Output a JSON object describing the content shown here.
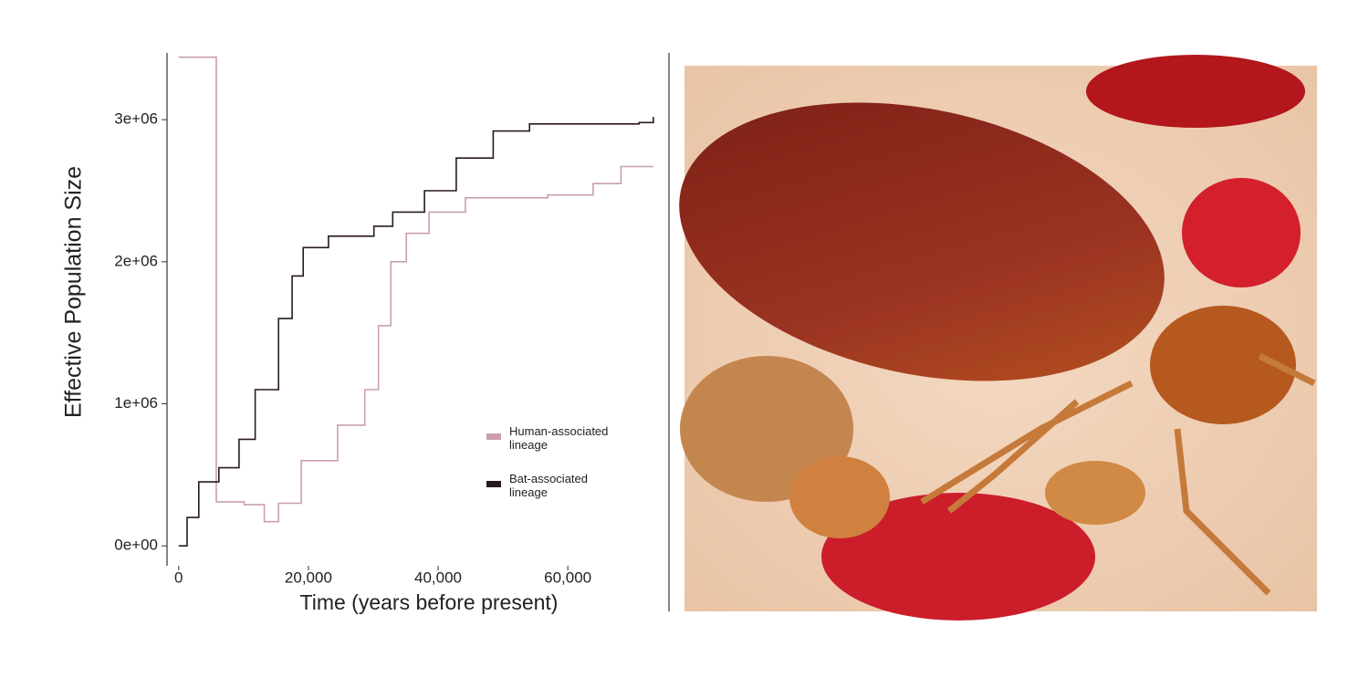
{
  "chart_data": {
    "type": "line",
    "y_label": "Effective Population Size",
    "x_label": "Time (years before present)",
    "xlim": [
      -1800,
      75600
    ],
    "ylim": [
      -140000,
      3470000
    ],
    "xticks": [
      0,
      {
        "value": 20000,
        "label": "20,000"
      },
      {
        "value": 40000,
        "label": "40,000"
      },
      {
        "value": 60000,
        "label": "60,000"
      }
    ],
    "yticks": [
      {
        "value": 0,
        "label": "0e+00"
      },
      {
        "value": 1000000,
        "label": "1e+06"
      },
      {
        "value": 2000000,
        "label": "2e+06"
      },
      {
        "value": 3000000,
        "label": "3e+06"
      }
    ],
    "series": [
      {
        "name": "Human-associated lineage",
        "color": "#c9a0ab",
        "x": [
          0,
          2700,
          5800,
          10100,
          13200,
          15400,
          18900,
          24500,
          28700,
          30800,
          32700,
          35100,
          38600,
          44200,
          56900,
          63900,
          68200,
          73200
        ],
        "values": [
          3440000,
          3440000,
          310000,
          290000,
          170000,
          300000,
          600000,
          850000,
          1100000,
          1550000,
          2000000,
          2200000,
          2350000,
          2450000,
          2470000,
          2550000,
          2670000,
          2670000
        ]
      },
      {
        "name": "Bat-associated lineage",
        "color": "#2a1a1c",
        "x": [
          0,
          1300,
          3100,
          6200,
          9300,
          11800,
          15400,
          17500,
          19200,
          23100,
          30100,
          33000,
          37900,
          42800,
          48500,
          54100,
          71000,
          73200
        ],
        "values": [
          0,
          200000,
          450000,
          550000,
          750000,
          1100000,
          1600000,
          1900000,
          2100000,
          2180000,
          2250000,
          2350000,
          2500000,
          2730000,
          2920000,
          2970000,
          2980000,
          3020000
        ]
      }
    ]
  }
}
